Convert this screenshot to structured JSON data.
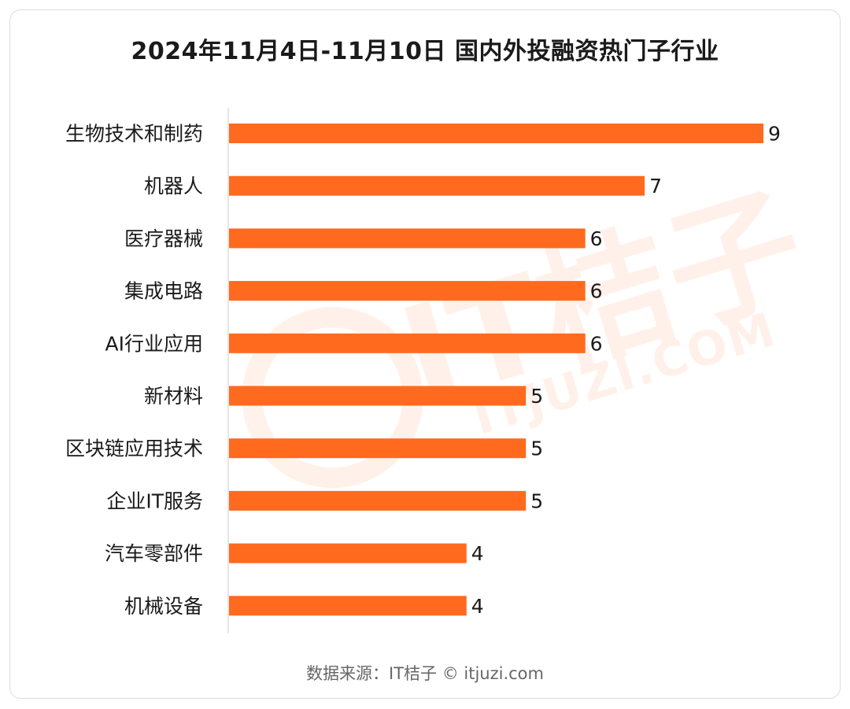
{
  "title": "2024年11月4日-11月10日 国内外投融资热门子行业",
  "source": "数据来源：IT桔子 © itjuzi.com",
  "watermark": {
    "brand": "IT桔子",
    "site": "ITJUZI.COM"
  },
  "colors": {
    "bar": "#ff6a1f",
    "axis": "#cccccc",
    "text": "#1a1a1a"
  },
  "chart_data": {
    "type": "bar",
    "orientation": "horizontal",
    "title": "2024年11月4日-11月10日 国内外投融资热门子行业",
    "categories": [
      "生物技术和制药",
      "机器人",
      "医疗器械",
      "集成电路",
      "AI行业应用",
      "新材料",
      "区块链应用技术",
      "企业IT服务",
      "汽车零部件",
      "机械设备"
    ],
    "values": [
      9,
      7,
      6,
      6,
      6,
      5,
      5,
      5,
      4,
      4
    ],
    "xlim": [
      0,
      9
    ],
    "grid": false,
    "data_labels": true
  }
}
